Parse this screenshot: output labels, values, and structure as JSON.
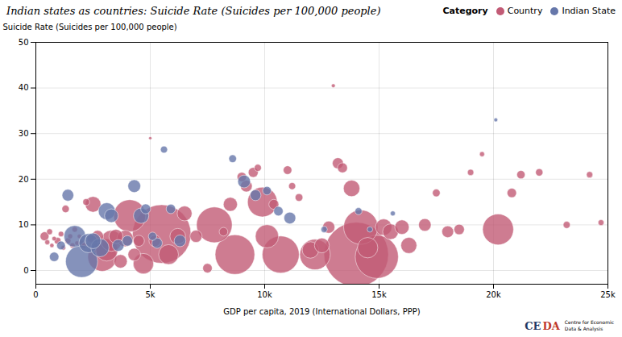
{
  "chart_data": {
    "type": "scatter",
    "title": "Indian states as countries: Suicide Rate (Suicides per 100,000 people)",
    "xlabel": "GDP per capita, 2019 (International Dollars, PPP)",
    "ylabel": "Suicide Rate (Suicides per 100,000 people)",
    "xlim": [
      0,
      25000
    ],
    "ylim": [
      -3,
      50
    ],
    "xticks": [
      0,
      {
        "value": 5000,
        "label": "5k"
      },
      {
        "value": 10000,
        "label": "10k"
      },
      {
        "value": 15000,
        "label": "15k"
      },
      {
        "value": 20000,
        "label": "20k"
      },
      {
        "value": 25000,
        "label": "25k"
      }
    ],
    "yticks": [
      0,
      10,
      20,
      30,
      40,
      50
    ],
    "grid": true,
    "legend": "upper right",
    "legend_title": "Category",
    "series": [
      {
        "name": "Country",
        "color": "#c25b76",
        "x": [
          380,
          500,
          600,
          700,
          800,
          950,
          1100,
          1200,
          1300,
          1400,
          1500,
          1600,
          1700,
          1800,
          1900,
          2000,
          2100,
          2200,
          2400,
          2500,
          2700,
          2900,
          3100,
          3300,
          3500,
          3700,
          3900,
          4100,
          4300,
          4500,
          4700,
          5000,
          5200,
          5500,
          5800,
          6200,
          6500,
          7000,
          7500,
          7800,
          8200,
          8500,
          8700,
          9000,
          9200,
          9500,
          9700,
          9900,
          10100,
          10400,
          10700,
          11000,
          11200,
          11500,
          12000,
          12200,
          12500,
          12800,
          13000,
          13200,
          13400,
          13800,
          14000,
          14200,
          14500,
          14900,
          15200,
          15500,
          16000,
          16300,
          17000,
          17500,
          18000,
          18500,
          19000,
          19500,
          20200,
          20800,
          21200,
          22000,
          23200,
          24200,
          24700
        ],
        "values": [
          7.5,
          6.2,
          8.5,
          5.5,
          7.0,
          6.5,
          8.0,
          5.0,
          13.5,
          6.5,
          7.5,
          5.5,
          9.0,
          6.0,
          7.5,
          6.0,
          5.5,
          15.0,
          7.0,
          14.5,
          7.5,
          3.0,
          4.5,
          6.5,
          7.5,
          2.0,
          7.0,
          12.0,
          3.5,
          6.5,
          1.5,
          29.0,
          6.5,
          8.0,
          3.5,
          7.5,
          12.5,
          7.5,
          0.5,
          10.0,
          8.5,
          14.5,
          3.5,
          20.5,
          18.5,
          21.5,
          22.5,
          15.0,
          7.5,
          14.5,
          3.5,
          22.0,
          18.5,
          16.0,
          4.5,
          3.5,
          5.5,
          9.5,
          40.5,
          23.5,
          22.5,
          18.0,
          3.5,
          9.5,
          5.0,
          3.0,
          9.5,
          8.5,
          9.5,
          5.5,
          10.0,
          17.0,
          8.5,
          9.0,
          21.5,
          25.5,
          9.0,
          17.0,
          21.0,
          21.5,
          10.0,
          21.0,
          10.5
        ],
        "sizes": [
          16000000,
          5000000,
          7000000,
          3500000,
          4000000,
          9000000,
          6000000,
          4500000,
          11000000,
          7000000,
          5000000,
          5500000,
          6000000,
          4000000,
          3500000,
          7500000,
          6500000,
          9000000,
          10000000,
          50000000,
          28000000,
          170000000,
          100000000,
          90000000,
          40000000,
          37000000,
          55000000,
          210000000,
          32000000,
          25000000,
          85000000,
          2000000,
          28000000,
          700000000,
          80000000,
          50000000,
          45000000,
          30000000,
          18000000,
          260000000,
          15000000,
          40000000,
          320000000,
          18000000,
          28000000,
          20000000,
          10000000,
          180000000,
          110000000,
          20000000,
          280000000,
          15000000,
          10000000,
          12000000,
          55000000,
          190000000,
          45000000,
          30000000,
          3000000,
          25000000,
          20000000,
          55000000,
          850000000,
          240000000,
          85000000,
          380000000,
          55000000,
          50000000,
          42000000,
          52000000,
          32000000,
          12000000,
          28000000,
          22000000,
          8000000,
          5000000,
          195000000,
          18000000,
          14000000,
          11000000,
          10000000,
          8000000,
          7000000
        ]
      },
      {
        "name": "Indian State",
        "color": "#6677aa",
        "x": [
          800,
          1100,
          1400,
          1700,
          2000,
          2300,
          2500,
          2800,
          3100,
          3300,
          3600,
          4000,
          4300,
          4600,
          4800,
          5100,
          5300,
          5600,
          5900,
          6300,
          8600,
          9100,
          9600,
          10100,
          10600,
          11100,
          12600,
          14100,
          14600,
          15600,
          20100
        ],
        "values": [
          3.0,
          5.5,
          16.5,
          7.5,
          2.0,
          6.0,
          6.5,
          5.0,
          13.0,
          12.0,
          5.5,
          6.5,
          18.5,
          12.0,
          13.5,
          7.5,
          6.0,
          26.5,
          13.5,
          6.5,
          24.5,
          19.5,
          16.5,
          17.5,
          13.0,
          11.5,
          9.0,
          13.0,
          9.0,
          12.5,
          33.0
        ],
        "sizes": [
          18000000,
          15000000,
          28000000,
          95000000,
          210000000,
          75000000,
          50000000,
          68000000,
          58000000,
          38000000,
          28000000,
          22000000,
          33000000,
          48000000,
          20000000,
          14000000,
          22000000,
          10000000,
          18000000,
          28000000,
          12000000,
          33000000,
          24000000,
          15000000,
          18000000,
          28000000,
          8000000,
          10000000,
          6000000,
          5000000,
          3000000
        ]
      }
    ],
    "annotations": [
      {
        "text": "CE",
        "color": "#1f3864"
      },
      {
        "text": "DA",
        "color": "#c0392b"
      },
      {
        "text": "Centre for Economic\nData & Analysis"
      }
    ]
  }
}
